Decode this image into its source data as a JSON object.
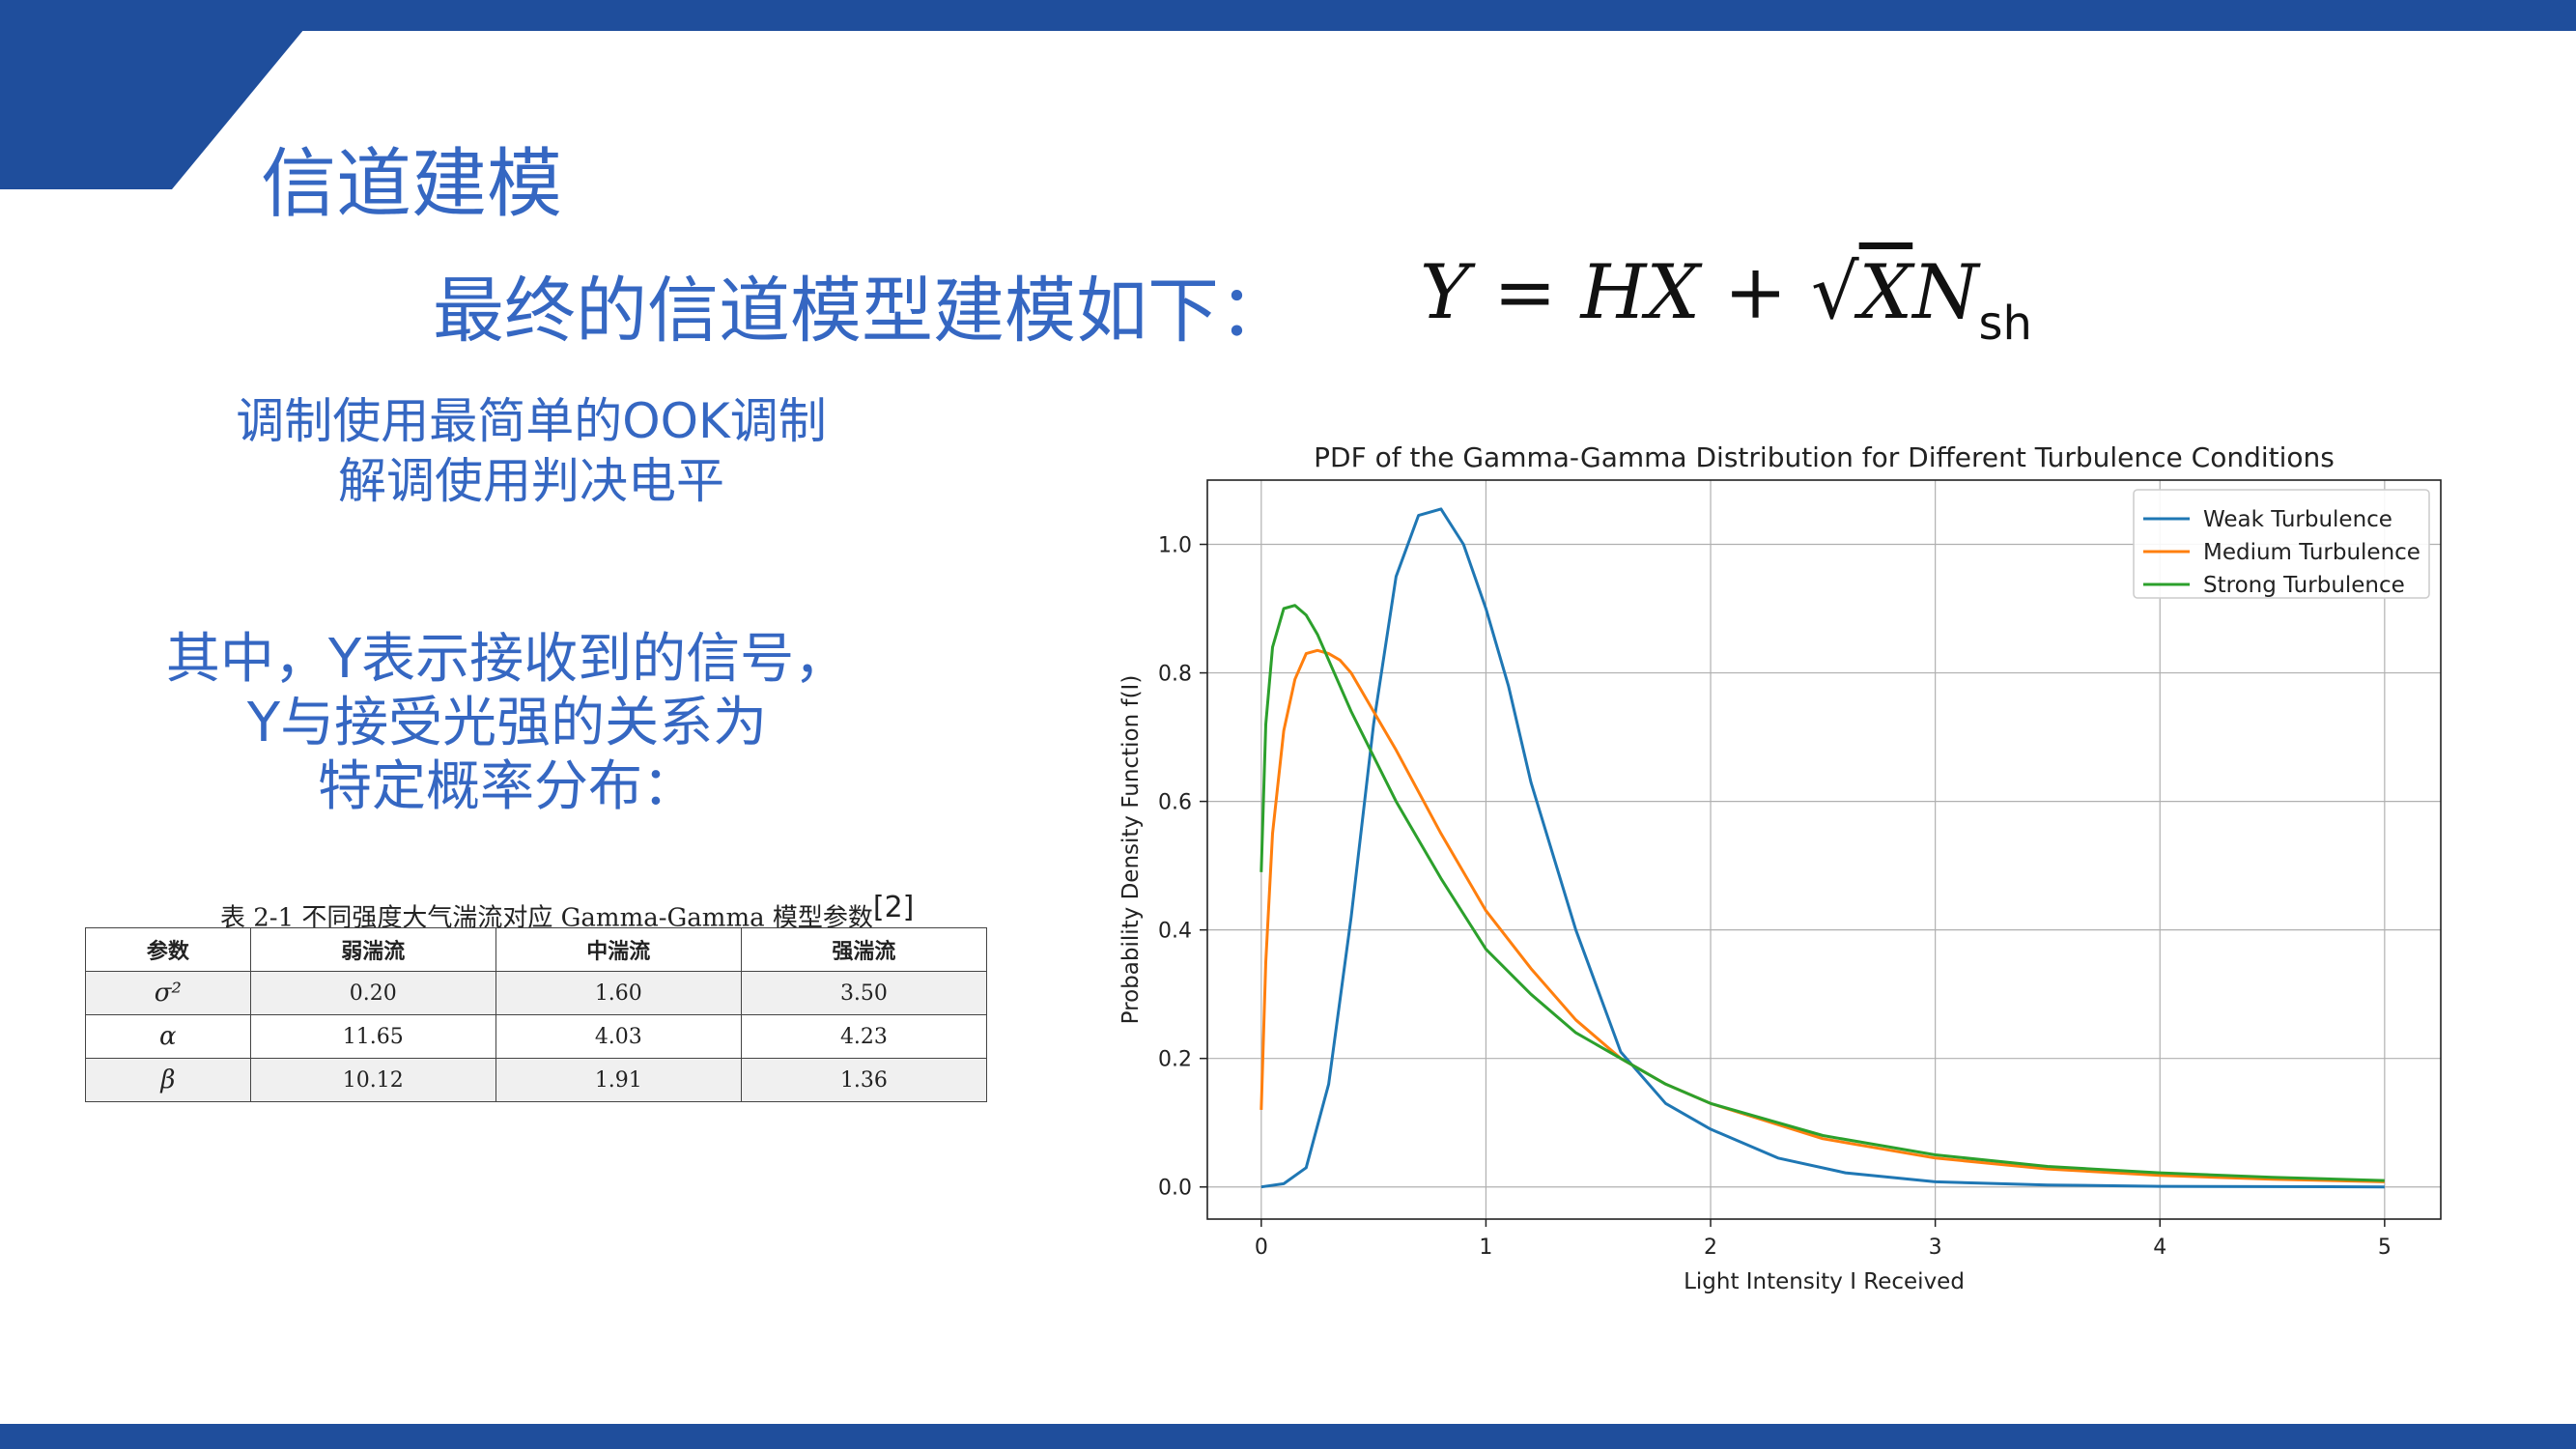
{
  "slide": {
    "title": "信道建模",
    "subtitle": "最终的信道模型建模如下：",
    "formula": {
      "lhs": "Y",
      "eq": "=",
      "hx": "HX",
      "plus": "+",
      "sqrt_arg": "X",
      "n": "N",
      "n_sub": "sh"
    },
    "para1": [
      "调制使用最简单的OOK调制",
      "解调使用判决电平"
    ],
    "para2": [
      "其中，Y表示接收到的信号，",
      "Y与接受光强的关系为",
      "特定概率分布："
    ]
  },
  "table": {
    "caption": "表 2-1  不同强度大气湍流对应 Gamma-Gamma 模型参数",
    "caption_ref": "[2]",
    "headers": [
      "参数",
      "弱湍流",
      "中湍流",
      "强湍流"
    ],
    "rows": [
      {
        "param": "σ²",
        "weak": "0.20",
        "medium": "1.60",
        "strong": "3.50"
      },
      {
        "param": "α",
        "weak": "11.65",
        "medium": "4.03",
        "strong": "4.23"
      },
      {
        "param": "β",
        "weak": "10.12",
        "medium": "1.91",
        "strong": "1.36"
      }
    ]
  },
  "chart_data": {
    "type": "line",
    "title": "PDF of the Gamma-Gamma Distribution for Different Turbulence Conditions",
    "xlabel": "Light Intensity I Received",
    "ylabel": "Probability Density Function f(I)",
    "xlim": [
      -0.24,
      5.25
    ],
    "ylim": [
      -0.05,
      1.1
    ],
    "xticks": [
      0,
      1,
      2,
      3,
      4,
      5
    ],
    "yticks": [
      0.0,
      0.2,
      0.4,
      0.6,
      0.8,
      1.0
    ],
    "grid": true,
    "legend": "top-right",
    "series": [
      {
        "name": "Weak Turbulence",
        "color": "#1f77b4",
        "x": [
          0,
          0.1,
          0.2,
          0.3,
          0.4,
          0.5,
          0.6,
          0.7,
          0.8,
          0.9,
          1.0,
          1.1,
          1.2,
          1.4,
          1.6,
          1.8,
          2.0,
          2.3,
          2.6,
          3.0,
          3.5,
          4.0,
          5.0
        ],
        "y": [
          0,
          0.005,
          0.03,
          0.16,
          0.42,
          0.72,
          0.95,
          1.045,
          1.055,
          1.0,
          0.9,
          0.78,
          0.63,
          0.4,
          0.21,
          0.13,
          0.09,
          0.045,
          0.022,
          0.008,
          0.003,
          0.001,
          0.0
        ]
      },
      {
        "name": "Medium Turbulence",
        "color": "#ff7f0e",
        "x": [
          0,
          0.02,
          0.05,
          0.1,
          0.15,
          0.2,
          0.25,
          0.3,
          0.35,
          0.4,
          0.5,
          0.6,
          0.8,
          1.0,
          1.2,
          1.4,
          1.6,
          1.8,
          2.0,
          2.5,
          3.0,
          3.5,
          4.0,
          4.5,
          5.0
        ],
        "y": [
          0.12,
          0.35,
          0.55,
          0.71,
          0.79,
          0.83,
          0.835,
          0.83,
          0.82,
          0.8,
          0.74,
          0.68,
          0.55,
          0.43,
          0.34,
          0.26,
          0.2,
          0.16,
          0.13,
          0.075,
          0.045,
          0.028,
          0.018,
          0.012,
          0.008
        ]
      },
      {
        "name": "Strong Turbulence",
        "color": "#2ca02c",
        "x": [
          0,
          0.02,
          0.05,
          0.1,
          0.15,
          0.2,
          0.25,
          0.3,
          0.4,
          0.5,
          0.6,
          0.8,
          1.0,
          1.2,
          1.4,
          1.6,
          1.8,
          2.0,
          2.5,
          3.0,
          3.5,
          4.0,
          4.5,
          5.0
        ],
        "y": [
          0.49,
          0.72,
          0.84,
          0.9,
          0.905,
          0.89,
          0.86,
          0.82,
          0.74,
          0.67,
          0.6,
          0.48,
          0.37,
          0.3,
          0.24,
          0.2,
          0.16,
          0.13,
          0.08,
          0.05,
          0.032,
          0.022,
          0.015,
          0.01
        ]
      }
    ]
  }
}
